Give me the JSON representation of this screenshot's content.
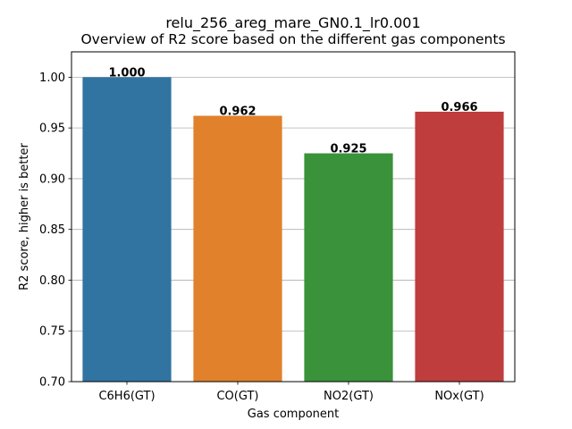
{
  "chart_data": {
    "type": "bar",
    "title_line1": "relu_256_areg_mare_GN0.1_lr0.001",
    "title_line2": "Overview of R2 score based on the different gas components",
    "xlabel": "Gas component",
    "ylabel": "R2 score, higher is better",
    "categories": [
      "C6H6(GT)",
      "CO(GT)",
      "NO2(GT)",
      "NOx(GT)"
    ],
    "values": [
      1.0,
      0.962,
      0.925,
      0.966
    ],
    "value_labels": [
      "1.000",
      "0.962",
      "0.925",
      "0.966"
    ],
    "colors": [
      "#3274a1",
      "#e1812c",
      "#3a923a",
      "#c03d3e"
    ],
    "ylim": [
      0.7,
      1.025
    ],
    "yticks": [
      0.7,
      0.75,
      0.8,
      0.85,
      0.9,
      0.95,
      1.0
    ],
    "ytick_labels": [
      "0.70",
      "0.75",
      "0.80",
      "0.85",
      "0.90",
      "0.95",
      "1.00"
    ],
    "grid": "y",
    "legend": "none"
  }
}
